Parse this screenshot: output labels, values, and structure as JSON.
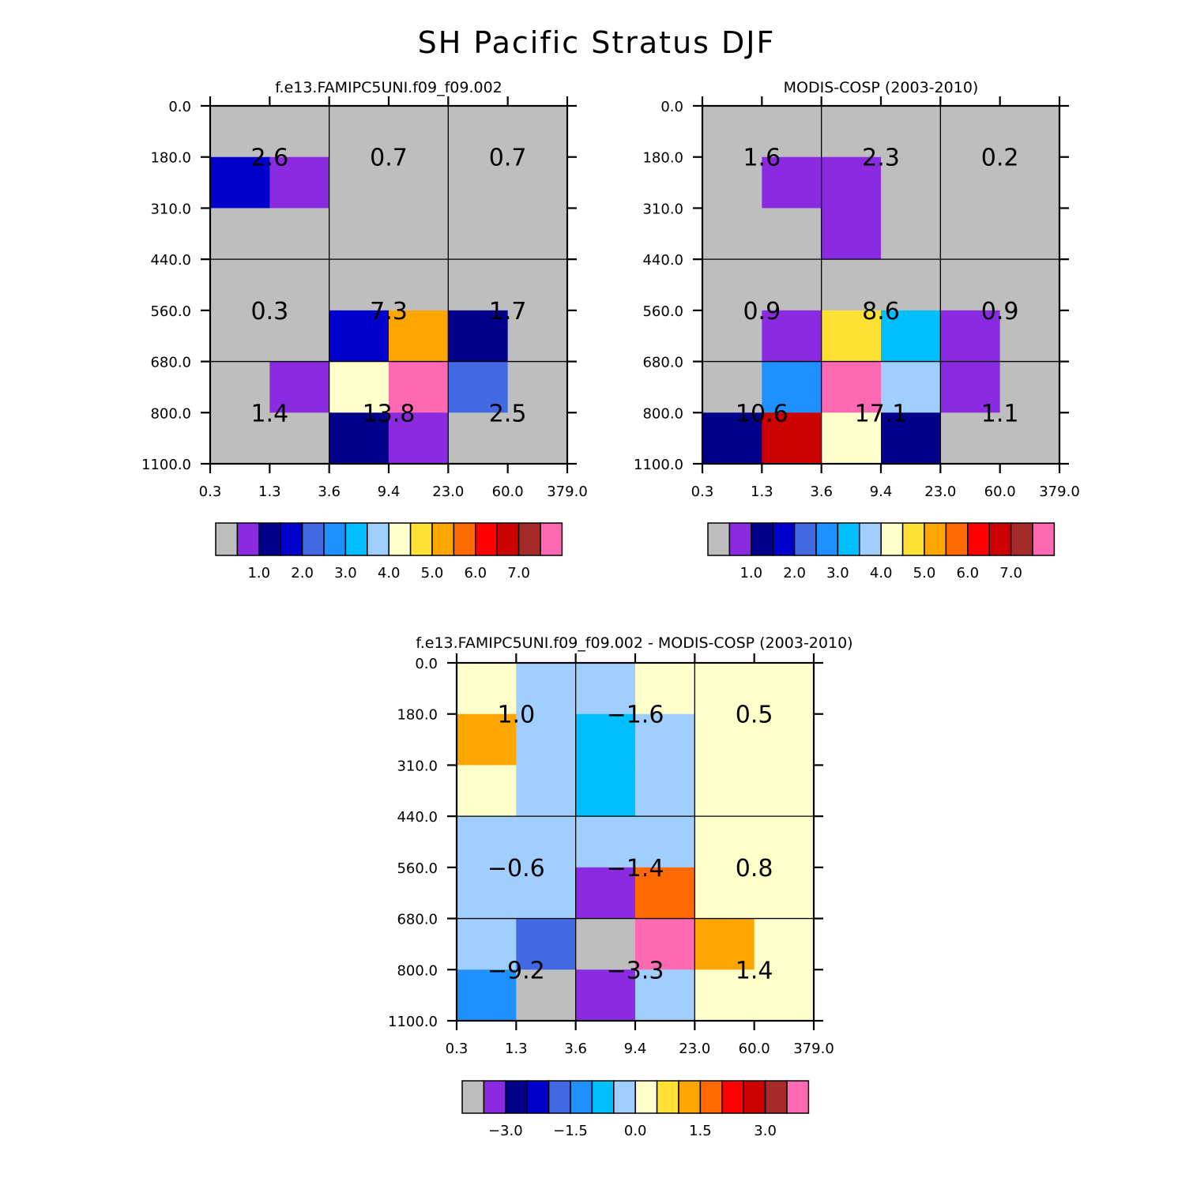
{
  "page": {
    "title": "SH Pacific Stratus DJF"
  },
  "chart_data": [
    {
      "type": "heatmap",
      "title": "f.e13.FAMIPC5UNI.f09_f09.002",
      "x_tick_labels": [
        "0.3",
        "1.3",
        "3.6",
        "9.4",
        "23.0",
        "60.0",
        "379.0"
      ],
      "y_tick_labels": [
        "0.0",
        "180.0",
        "310.0",
        "440.0",
        "560.0",
        "680.0",
        "800.0",
        "1100.0"
      ],
      "cells": [
        [
          "#BEBEBE",
          "#BEBEBE",
          "#BEBEBE",
          "#BEBEBE",
          "#BEBEBE",
          "#BEBEBE"
        ],
        [
          "#0000CD",
          "#8A2BE2",
          "#BEBEBE",
          "#BEBEBE",
          "#BEBEBE",
          "#BEBEBE"
        ],
        [
          "#BEBEBE",
          "#BEBEBE",
          "#BEBEBE",
          "#BEBEBE",
          "#BEBEBE",
          "#BEBEBE"
        ],
        [
          "#BEBEBE",
          "#BEBEBE",
          "#BEBEBE",
          "#BEBEBE",
          "#BEBEBE",
          "#BEBEBE"
        ],
        [
          "#BEBEBE",
          "#BEBEBE",
          "#0000CD",
          "#FFA500",
          "#00008B",
          "#BEBEBE"
        ],
        [
          "#BEBEBE",
          "#8A2BE2",
          "#FFFFCC",
          "#FF69B4",
          "#4169E1",
          "#BEBEBE"
        ],
        [
          "#BEBEBE",
          "#BEBEBE",
          "#00008B",
          "#8A2BE2",
          "#BEBEBE",
          "#BEBEBE"
        ]
      ],
      "labels": [
        [
          "2.6",
          "0.7",
          "0.7"
        ],
        [
          "0.3",
          "7.3",
          "1.7"
        ],
        [
          "1.4",
          "13.8",
          "2.5"
        ]
      ],
      "colorbar": {
        "colors": [
          "#BEBEBE",
          "#8A2BE2",
          "#00008B",
          "#0000CD",
          "#4169E1",
          "#1E90FF",
          "#00BFFF",
          "#A0CFFF",
          "#FFFFCC",
          "#FFE135",
          "#FFA500",
          "#FF6A00",
          "#FF0000",
          "#CD0000",
          "#A52A2A",
          "#FF69B4"
        ],
        "labels": [
          "1.0",
          "2.0",
          "3.0",
          "4.0",
          "5.0",
          "6.0",
          "7.0"
        ]
      }
    },
    {
      "type": "heatmap",
      "title": "MODIS-COSP (2003-2010)",
      "x_tick_labels": [
        "0.3",
        "1.3",
        "3.6",
        "9.4",
        "23.0",
        "60.0",
        "379.0"
      ],
      "y_tick_labels": [
        "0.0",
        "180.0",
        "310.0",
        "440.0",
        "560.0",
        "680.0",
        "800.0",
        "1100.0"
      ],
      "cells": [
        [
          "#BEBEBE",
          "#BEBEBE",
          "#BEBEBE",
          "#BEBEBE",
          "#BEBEBE",
          "#BEBEBE"
        ],
        [
          "#BEBEBE",
          "#8A2BE2",
          "#8A2BE2",
          "#BEBEBE",
          "#BEBEBE",
          "#BEBEBE"
        ],
        [
          "#BEBEBE",
          "#BEBEBE",
          "#8A2BE2",
          "#BEBEBE",
          "#BEBEBE",
          "#BEBEBE"
        ],
        [
          "#BEBEBE",
          "#BEBEBE",
          "#BEBEBE",
          "#BEBEBE",
          "#BEBEBE",
          "#BEBEBE"
        ],
        [
          "#BEBEBE",
          "#8A2BE2",
          "#FFE135",
          "#00BFFF",
          "#8A2BE2",
          "#BEBEBE"
        ],
        [
          "#BEBEBE",
          "#1E90FF",
          "#FF69B4",
          "#A0CFFF",
          "#8A2BE2",
          "#BEBEBE"
        ],
        [
          "#00008B",
          "#CD0000",
          "#FFFFCC",
          "#00008B",
          "#BEBEBE",
          "#BEBEBE"
        ]
      ],
      "labels": [
        [
          "1.6",
          "2.3",
          "0.2"
        ],
        [
          "0.9",
          "8.6",
          "0.9"
        ],
        [
          "10.6",
          "17.1",
          "1.1"
        ]
      ],
      "colorbar": {
        "colors": [
          "#BEBEBE",
          "#8A2BE2",
          "#00008B",
          "#0000CD",
          "#4169E1",
          "#1E90FF",
          "#00BFFF",
          "#A0CFFF",
          "#FFFFCC",
          "#FFE135",
          "#FFA500",
          "#FF6A00",
          "#FF0000",
          "#CD0000",
          "#A52A2A",
          "#FF69B4"
        ],
        "labels": [
          "1.0",
          "2.0",
          "3.0",
          "4.0",
          "5.0",
          "6.0",
          "7.0"
        ]
      }
    },
    {
      "type": "heatmap",
      "title": "f.e13.FAMIPC5UNI.f09_f09.002 - MODIS-COSP (2003-2010)",
      "x_tick_labels": [
        "0.3",
        "1.3",
        "3.6",
        "9.4",
        "23.0",
        "60.0",
        "379.0"
      ],
      "y_tick_labels": [
        "0.0",
        "180.0",
        "310.0",
        "440.0",
        "560.0",
        "680.0",
        "800.0",
        "1100.0"
      ],
      "cells": [
        [
          "#FFFFCC",
          "#A0CFFF",
          "#A0CFFF",
          "#FFFFCC",
          "#FFFFCC",
          "#FFFFCC"
        ],
        [
          "#FFA500",
          "#A0CFFF",
          "#00BFFF",
          "#A0CFFF",
          "#FFFFCC",
          "#FFFFCC"
        ],
        [
          "#FFFFCC",
          "#A0CFFF",
          "#00BFFF",
          "#A0CFFF",
          "#FFFFCC",
          "#FFFFCC"
        ],
        [
          "#A0CFFF",
          "#A0CFFF",
          "#A0CFFF",
          "#A0CFFF",
          "#FFFFCC",
          "#FFFFCC"
        ],
        [
          "#A0CFFF",
          "#A0CFFF",
          "#8A2BE2",
          "#FF6A00",
          "#FFFFCC",
          "#FFFFCC"
        ],
        [
          "#A0CFFF",
          "#4169E1",
          "#BEBEBE",
          "#FF69B4",
          "#FFA500",
          "#FFFFCC"
        ],
        [
          "#1E90FF",
          "#BEBEBE",
          "#8A2BE2",
          "#A0CFFF",
          "#FFFFCC",
          "#FFFFCC"
        ]
      ],
      "labels": [
        [
          "1.0",
          "-1.6",
          "0.5"
        ],
        [
          "-0.6",
          "-1.4",
          "0.8"
        ],
        [
          "-9.2",
          "-3.3",
          "1.4"
        ]
      ],
      "colorbar": {
        "colors": [
          "#BEBEBE",
          "#8A2BE2",
          "#00008B",
          "#0000CD",
          "#4169E1",
          "#1E90FF",
          "#00BFFF",
          "#A0CFFF",
          "#FFFFCC",
          "#FFE135",
          "#FFA500",
          "#FF6A00",
          "#FF0000",
          "#CD0000",
          "#A52A2A",
          "#FF69B4"
        ],
        "labels": [
          "-3.0",
          "-1.5",
          "0.0",
          "1.5",
          "3.0"
        ]
      }
    }
  ]
}
